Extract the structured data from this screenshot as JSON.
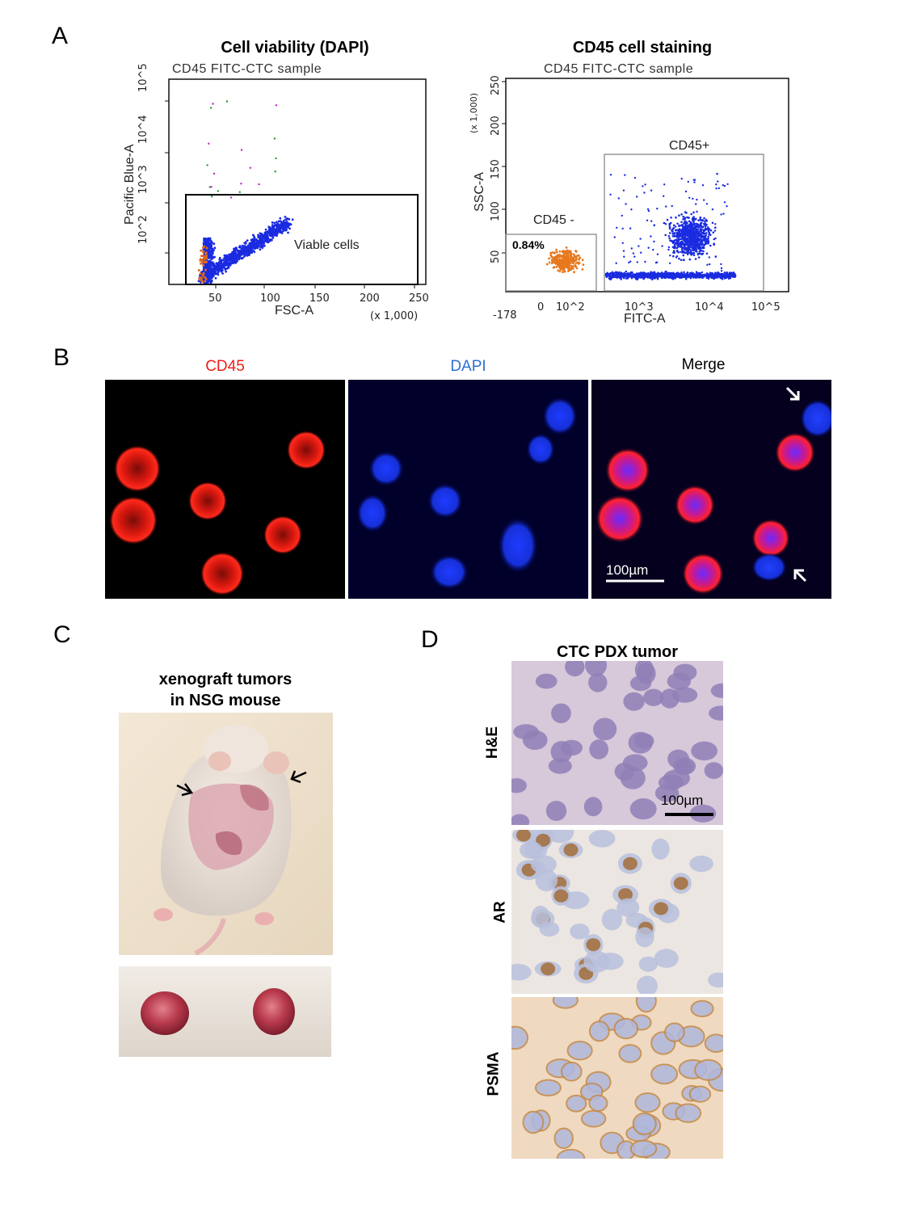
{
  "panels": {
    "A": {
      "letter": "A",
      "plot1": {
        "title": "Cell viability (DAPI)",
        "subtitle": "CD45 FITC-CTC sample",
        "ylabel": "Pacific Blue-A",
        "xlabel": "FSC-A",
        "xmult": "(x 1,000)",
        "xticks": [
          "50",
          "100",
          "150",
          "200",
          "250"
        ],
        "yticks": [
          "10^2",
          "10^3",
          "10^4",
          "10^5"
        ],
        "gate_label": "Viable cells"
      },
      "plot2": {
        "title": "CD45  cell staining",
        "subtitle": "CD45 FITC-CTC sample",
        "ylabel": "SSC-A",
        "ymult": "(x 1,000)",
        "xlabel": "FITC-A",
        "xticks": [
          "-178",
          "0",
          "10^2",
          "10^3",
          "10^4",
          "10^5"
        ],
        "yticks": [
          "50",
          "100",
          "150",
          "200",
          "250"
        ],
        "gate_neg_label": "CD45 -",
        "gate_neg_pct": "0.84%",
        "gate_pos_label": "CD45+"
      }
    },
    "B": {
      "letter": "B",
      "channels": [
        "CD45",
        "DAPI",
        "Merge"
      ],
      "channel_colors": [
        "#e8201a",
        "#2a6fd6",
        "#000000"
      ],
      "scale_bar": "100µm"
    },
    "C": {
      "letter": "C",
      "title_line1": "xenograft tumors",
      "title_line2": "in NSG mouse"
    },
    "D": {
      "letter": "D",
      "title": "CTC PDX tumor",
      "stains": [
        "H&E",
        "AR",
        "PSMA"
      ],
      "scale_bar": "100µm"
    }
  }
}
